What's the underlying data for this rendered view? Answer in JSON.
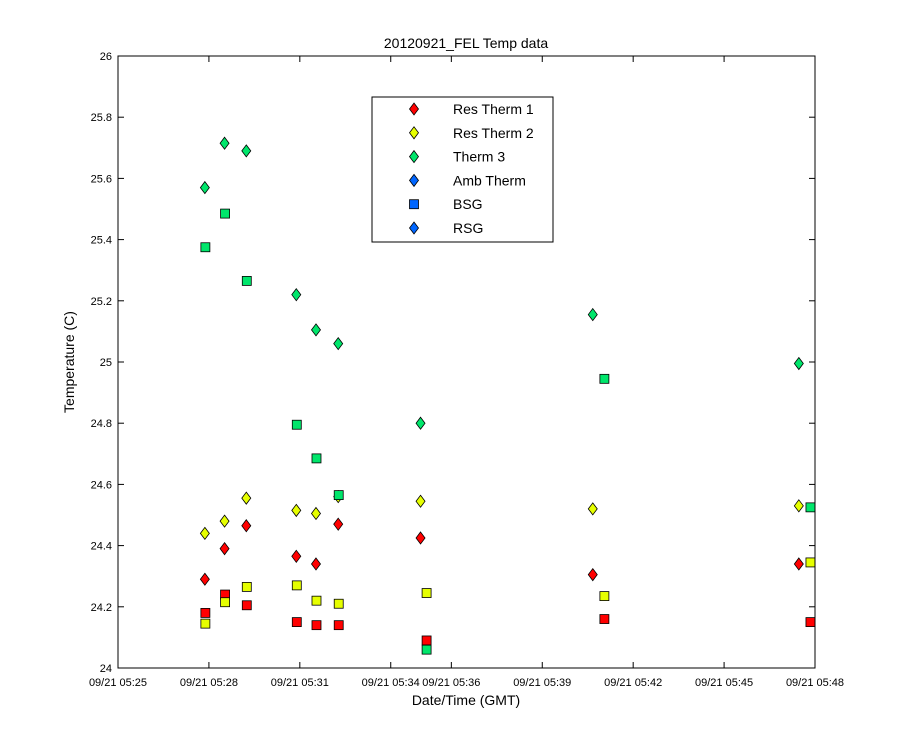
{
  "chart_data": {
    "type": "scatter",
    "title": "20120921_FEL Temp data",
    "xlabel": "Date/Time (GMT)",
    "ylabel": "Temperature (C)",
    "xlim": [
      "2012-09-21T05:25:00",
      "2012-09-21T05:48:00"
    ],
    "ylim": [
      24,
      26
    ],
    "xticks": [
      {
        "value": "2012-09-21T05:25:00",
        "label": "09/21 05:25"
      },
      {
        "value": "2012-09-21T05:28:00",
        "label": "09/21 05:28"
      },
      {
        "value": "2012-09-21T05:31:00",
        "label": "09/21 05:31"
      },
      {
        "value": "2012-09-21T05:34:00",
        "label": "09/21 05:34"
      },
      {
        "value": "2012-09-21T05:36:00",
        "label": "09/21 05:36"
      },
      {
        "value": "2012-09-21T05:39:00",
        "label": "09/21 05:39"
      },
      {
        "value": "2012-09-21T05:42:00",
        "label": "09/21 05:42"
      },
      {
        "value": "2012-09-21T05:45:00",
        "label": "09/21 05:45"
      },
      {
        "value": "2012-09-21T05:48:00",
        "label": "09/21 05:48"
      }
    ],
    "yticks": [
      {
        "value": 24,
        "label": "24"
      },
      {
        "value": 24.2,
        "label": "24.2"
      },
      {
        "value": 24.4,
        "label": "24.4"
      },
      {
        "value": 24.6,
        "label": "24.6"
      },
      {
        "value": 24.8,
        "label": "24.8"
      },
      {
        "value": 25,
        "label": "25"
      },
      {
        "value": 25.2,
        "label": "25.2"
      },
      {
        "value": 25.4,
        "label": "25.4"
      },
      {
        "value": 25.6,
        "label": "25.6"
      },
      {
        "value": 25.8,
        "label": "25.8"
      },
      {
        "value": 26,
        "label": "26"
      }
    ],
    "grid": false,
    "legend": "top-center",
    "series": [
      {
        "name": "Res Therm 1",
        "marker": "diamond",
        "color": "#ff0000",
        "points": [
          {
            "x": "2012-09-21T05:27:52",
            "y": 24.29
          },
          {
            "x": "2012-09-21T05:28:31",
            "y": 24.39
          },
          {
            "x": "2012-09-21T05:29:14",
            "y": 24.465
          },
          {
            "x": "2012-09-21T05:30:53",
            "y": 24.365
          },
          {
            "x": "2012-09-21T05:31:32",
            "y": 24.34
          },
          {
            "x": "2012-09-21T05:32:16",
            "y": 24.47
          },
          {
            "x": "2012-09-21T05:34:59",
            "y": 24.425
          },
          {
            "x": "2012-09-21T05:40:40",
            "y": 24.305
          },
          {
            "x": "2012-09-21T05:47:28",
            "y": 24.34
          }
        ]
      },
      {
        "name": "Res Therm 2",
        "marker": "diamond",
        "color": "#e6ff00",
        "points": [
          {
            "x": "2012-09-21T05:27:52",
            "y": 24.44
          },
          {
            "x": "2012-09-21T05:28:31",
            "y": 24.48
          },
          {
            "x": "2012-09-21T05:29:14",
            "y": 24.555
          },
          {
            "x": "2012-09-21T05:30:53",
            "y": 24.515
          },
          {
            "x": "2012-09-21T05:31:32",
            "y": 24.505
          },
          {
            "x": "2012-09-21T05:32:16",
            "y": 24.56
          },
          {
            "x": "2012-09-21T05:34:59",
            "y": 24.545
          },
          {
            "x": "2012-09-21T05:40:40",
            "y": 24.52
          },
          {
            "x": "2012-09-21T05:47:28",
            "y": 24.53
          }
        ]
      },
      {
        "name": "Therm 3",
        "marker": "diamond",
        "color": "#00e66b",
        "points": [
          {
            "x": "2012-09-21T05:27:52",
            "y": 25.57
          },
          {
            "x": "2012-09-21T05:28:31",
            "y": 25.715
          },
          {
            "x": "2012-09-21T05:29:14",
            "y": 25.69
          },
          {
            "x": "2012-09-21T05:30:53",
            "y": 25.22
          },
          {
            "x": "2012-09-21T05:31:32",
            "y": 25.105
          },
          {
            "x": "2012-09-21T05:32:16",
            "y": 25.06
          },
          {
            "x": "2012-09-21T05:34:59",
            "y": 24.8
          },
          {
            "x": "2012-09-21T05:40:40",
            "y": 25.155
          },
          {
            "x": "2012-09-21T05:47:28",
            "y": 24.995
          }
        ]
      },
      {
        "name": "Amb Therm",
        "marker": "diamond",
        "color": "#0066ff",
        "points": []
      },
      {
        "name": "BSG",
        "marker": "square",
        "color": "#0066ff",
        "points": []
      },
      {
        "name": "RSG",
        "marker": "diamond",
        "color": "#0066ff",
        "points": []
      }
    ],
    "unlabeled_series": [
      {
        "marker": "square",
        "color": "#ff0000",
        "points": [
          {
            "x": "2012-09-21T05:27:53",
            "y": 24.18
          },
          {
            "x": "2012-09-21T05:28:32",
            "y": 24.24
          },
          {
            "x": "2012-09-21T05:29:15",
            "y": 24.205
          },
          {
            "x": "2012-09-21T05:30:54",
            "y": 24.15
          },
          {
            "x": "2012-09-21T05:31:33",
            "y": 24.14
          },
          {
            "x": "2012-09-21T05:32:17",
            "y": 24.14
          },
          {
            "x": "2012-09-21T05:35:11",
            "y": 24.09
          },
          {
            "x": "2012-09-21T05:41:03",
            "y": 24.16
          },
          {
            "x": "2012-09-21T05:47:51",
            "y": 24.15
          }
        ]
      },
      {
        "marker": "square",
        "color": "#e6ff00",
        "points": [
          {
            "x": "2012-09-21T05:27:53",
            "y": 24.145
          },
          {
            "x": "2012-09-21T05:28:32",
            "y": 24.215
          },
          {
            "x": "2012-09-21T05:29:15",
            "y": 24.265
          },
          {
            "x": "2012-09-21T05:30:54",
            "y": 24.27
          },
          {
            "x": "2012-09-21T05:31:33",
            "y": 24.22
          },
          {
            "x": "2012-09-21T05:32:17",
            "y": 24.21
          },
          {
            "x": "2012-09-21T05:35:11",
            "y": 24.245
          },
          {
            "x": "2012-09-21T05:41:03",
            "y": 24.235
          },
          {
            "x": "2012-09-21T05:47:51",
            "y": 24.345
          }
        ]
      },
      {
        "marker": "square",
        "color": "#00e66b",
        "points": [
          {
            "x": "2012-09-21T05:27:53",
            "y": 25.375
          },
          {
            "x": "2012-09-21T05:28:32",
            "y": 25.485
          },
          {
            "x": "2012-09-21T05:29:15",
            "y": 25.265
          },
          {
            "x": "2012-09-21T05:30:54",
            "y": 24.795
          },
          {
            "x": "2012-09-21T05:31:33",
            "y": 24.685
          },
          {
            "x": "2012-09-21T05:32:17",
            "y": 24.565
          },
          {
            "x": "2012-09-21T05:35:11",
            "y": 24.06
          },
          {
            "x": "2012-09-21T05:41:03",
            "y": 24.945
          },
          {
            "x": "2012-09-21T05:47:51",
            "y": 24.525
          }
        ]
      }
    ]
  }
}
